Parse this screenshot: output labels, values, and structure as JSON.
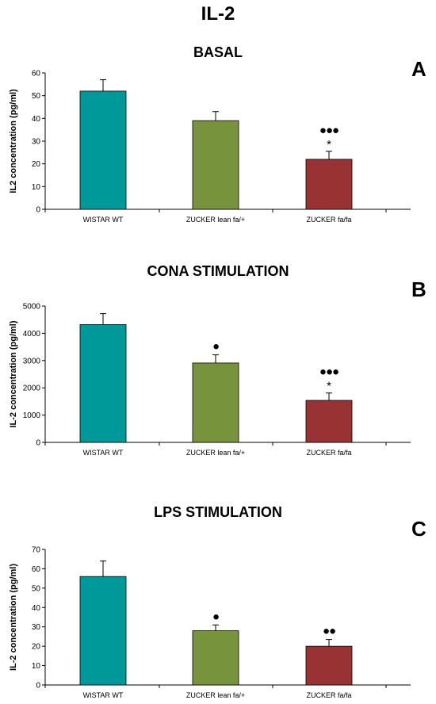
{
  "figure": {
    "title": "IL-2"
  },
  "chart_data": [
    {
      "type": "bar",
      "panel": "A",
      "title": "BASAL",
      "ylabel": "IL2 concentration (pg/ml)",
      "xlabel": "",
      "ylim": [
        0,
        60
      ],
      "yticks": [
        0,
        10,
        20,
        30,
        40,
        50,
        60
      ],
      "categories": [
        "WISTAR WT",
        "ZUCKER lean fa/+",
        "ZUCKER fa/fa"
      ],
      "values": [
        52,
        39,
        22
      ],
      "errors": [
        5,
        4,
        3.5
      ],
      "colors": [
        "#009999",
        "#77933C",
        "#993333"
      ],
      "annotations": [
        {
          "category": "ZUCKER fa/fa",
          "text": "●●●"
        },
        {
          "category": "ZUCKER fa/fa",
          "text": "*"
        }
      ],
      "grid": false
    },
    {
      "type": "bar",
      "panel": "B",
      "title": "CONA STIMULATION",
      "ylabel": "IL-2 concentration (pg/ml)",
      "xlabel": "",
      "ylim": [
        0,
        5000
      ],
      "yticks": [
        0,
        1000,
        2000,
        3000,
        4000,
        5000
      ],
      "categories": [
        "WISTAR WT",
        "ZUCKER lean fa/+",
        "ZUCKER fa/fa"
      ],
      "values": [
        4320,
        2910,
        1540
      ],
      "errors": [
        400,
        300,
        270
      ],
      "colors": [
        "#009999",
        "#77933C",
        "#993333"
      ],
      "annotations": [
        {
          "category": "ZUCKER lean fa/+",
          "text": "●"
        },
        {
          "category": "ZUCKER fa/fa",
          "text": "●●●"
        },
        {
          "category": "ZUCKER fa/fa",
          "text": "*"
        }
      ],
      "grid": false
    },
    {
      "type": "bar",
      "panel": "C",
      "title": "LPS STIMULATION",
      "ylabel": "IL-2 concentration (pg/ml)",
      "xlabel": "",
      "ylim": [
        0,
        70
      ],
      "yticks": [
        0,
        10,
        20,
        30,
        40,
        50,
        60,
        70
      ],
      "categories": [
        "WISTAR WT",
        "ZUCKER lean fa/+",
        "ZUCKER fa/fa"
      ],
      "values": [
        56,
        28,
        20
      ],
      "errors": [
        8,
        3,
        3.5
      ],
      "colors": [
        "#009999",
        "#77933C",
        "#993333"
      ],
      "annotations": [
        {
          "category": "ZUCKER lean fa/+",
          "text": "●"
        },
        {
          "category": "ZUCKER fa/fa",
          "text": "●●"
        }
      ],
      "grid": false
    }
  ]
}
